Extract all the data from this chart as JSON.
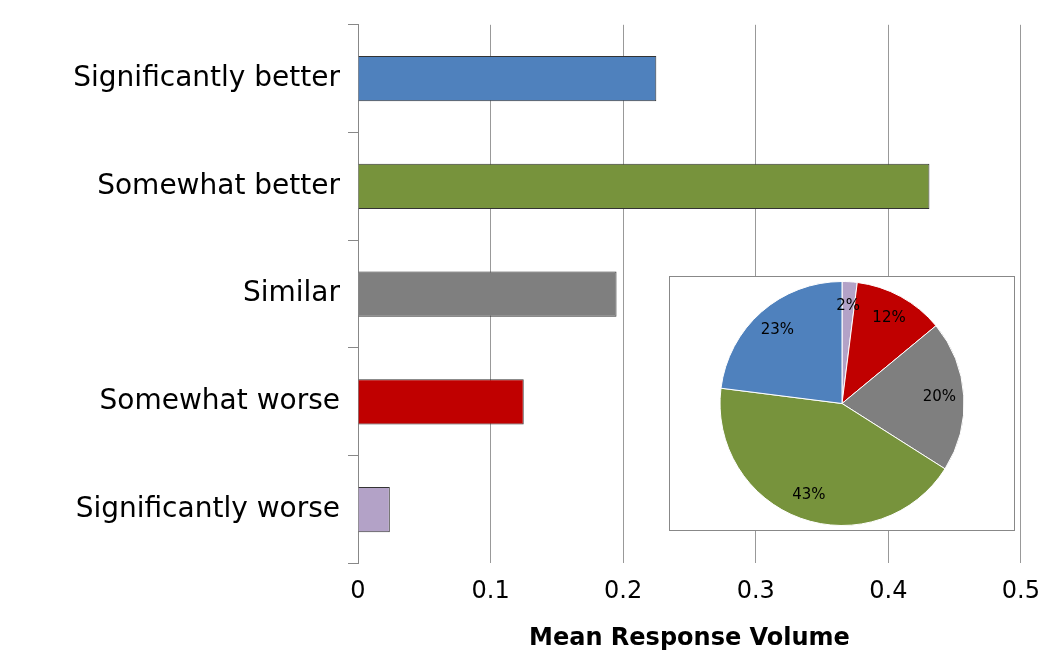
{
  "chart_data": [
    {
      "type": "bar",
      "orientation": "horizontal",
      "xlabel": "Mean Response Volume",
      "categories": [
        "Significantly better",
        "Somewhat better",
        "Similar",
        "Somewhat worse",
        "Significantly worse"
      ],
      "values": [
        0.225,
        0.431,
        0.195,
        0.125,
        0.024
      ],
      "colors": [
        "#4f81bd",
        "#77933c",
        "#7f7f7f",
        "#c00000",
        "#b3a2c7"
      ],
      "xlim": [
        0,
        0.5
      ],
      "xticks": [
        0,
        0.1,
        0.2,
        0.3,
        0.4,
        0.5
      ],
      "grid": "x",
      "legend": false
    },
    {
      "type": "pie",
      "categories": [
        null,
        null,
        null,
        null,
        null
      ],
      "values": [
        2,
        12,
        20,
        43,
        23
      ],
      "colors": [
        "#b3a2c7",
        "#c00000",
        "#7f7f7f",
        "#77933c",
        "#4f81bd"
      ],
      "value_labels": [
        "2%",
        "12%",
        "20%",
        "43%",
        "23%"
      ],
      "legend": false
    }
  ]
}
